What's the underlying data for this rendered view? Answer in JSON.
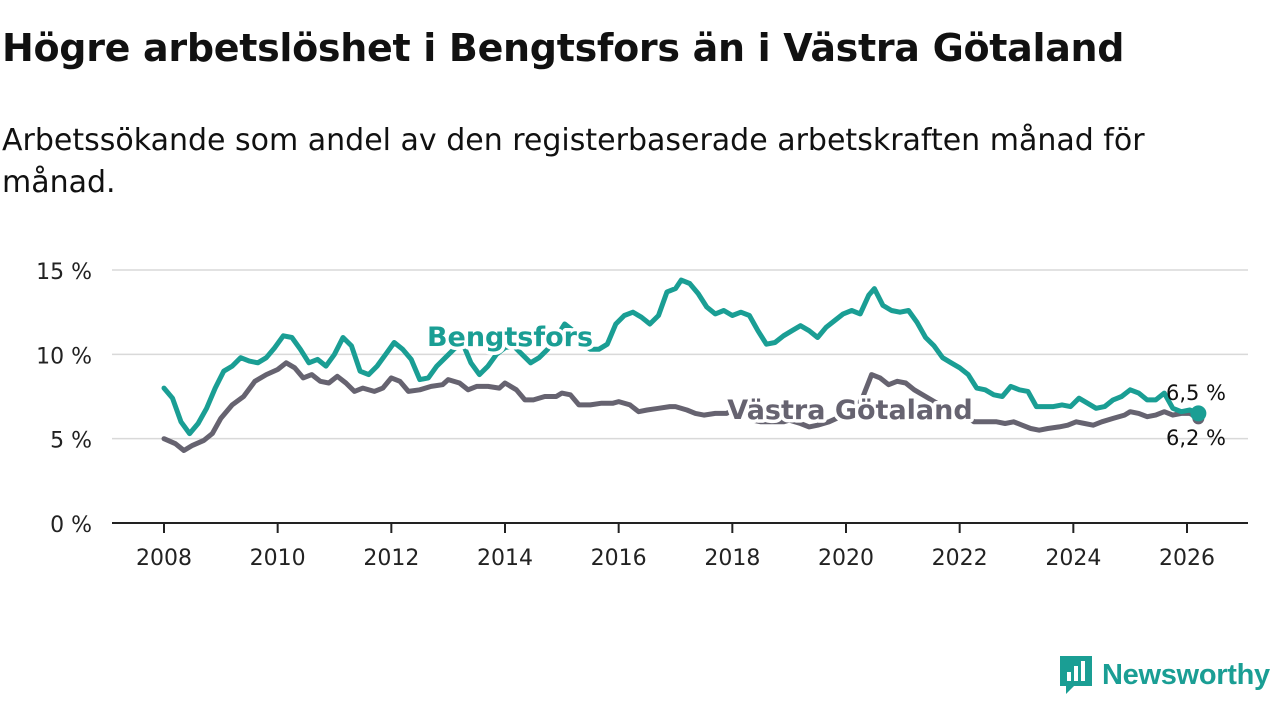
{
  "title": "Högre arbetslöshet i Bengtsfors än i Västra Götaland",
  "subtitle": "Arbetssökande som andel av den registerbaserade arbetskraften månad för månad.",
  "brand": {
    "name": "Newsworthy",
    "color": "#1a9e94",
    "icon": "newsworthy-logo-icon"
  },
  "chart_data": {
    "type": "line",
    "title": "Högre arbetslöshet i Bengtsfors än i Västra Götaland",
    "ylim": [
      0,
      15
    ],
    "xlim": [
      2007.9,
      2027.1
    ],
    "y_ticks": [
      0,
      5,
      10,
      15
    ],
    "y_tick_labels": [
      "0 %",
      "5 %",
      "10 %",
      "15 %"
    ],
    "x_ticks": [
      2008,
      2010,
      2012,
      2014,
      2016,
      2018,
      2020,
      2022,
      2024,
      2026
    ],
    "x_tick_labels": [
      "2008",
      "2010",
      "2012",
      "2014",
      "2016",
      "2018",
      "2020",
      "2022",
      "2024",
      "2026"
    ],
    "grid": true,
    "series": [
      {
        "name": "Västra Götaland",
        "label": "Västra Götaland",
        "color": "#666370",
        "end_label": "6,2 %",
        "points": [
          [
            2008.0,
            5.0
          ],
          [
            2008.2,
            4.7
          ],
          [
            2008.35,
            4.3
          ],
          [
            2008.5,
            4.6
          ],
          [
            2008.7,
            4.9
          ],
          [
            2008.85,
            5.3
          ],
          [
            2009.0,
            6.2
          ],
          [
            2009.2,
            7.0
          ],
          [
            2009.4,
            7.5
          ],
          [
            2009.6,
            8.4
          ],
          [
            2009.8,
            8.8
          ],
          [
            2010.0,
            9.1
          ],
          [
            2010.15,
            9.5
          ],
          [
            2010.3,
            9.2
          ],
          [
            2010.45,
            8.6
          ],
          [
            2010.6,
            8.8
          ],
          [
            2010.75,
            8.4
          ],
          [
            2010.9,
            8.3
          ],
          [
            2011.05,
            8.7
          ],
          [
            2011.2,
            8.3
          ],
          [
            2011.35,
            7.8
          ],
          [
            2011.5,
            8.0
          ],
          [
            2011.7,
            7.8
          ],
          [
            2011.85,
            8.0
          ],
          [
            2012.0,
            8.6
          ],
          [
            2012.15,
            8.4
          ],
          [
            2012.3,
            7.8
          ],
          [
            2012.5,
            7.9
          ],
          [
            2012.7,
            8.1
          ],
          [
            2012.9,
            8.2
          ],
          [
            2013.0,
            8.5
          ],
          [
            2013.2,
            8.3
          ],
          [
            2013.35,
            7.9
          ],
          [
            2013.5,
            8.1
          ],
          [
            2013.7,
            8.1
          ],
          [
            2013.9,
            8.0
          ],
          [
            2014.0,
            8.3
          ],
          [
            2014.2,
            7.9
          ],
          [
            2014.35,
            7.3
          ],
          [
            2014.5,
            7.3
          ],
          [
            2014.7,
            7.5
          ],
          [
            2014.9,
            7.5
          ],
          [
            2015.0,
            7.7
          ],
          [
            2015.15,
            7.6
          ],
          [
            2015.3,
            7.0
          ],
          [
            2015.5,
            7.0
          ],
          [
            2015.7,
            7.1
          ],
          [
            2015.9,
            7.1
          ],
          [
            2016.0,
            7.2
          ],
          [
            2016.2,
            7.0
          ],
          [
            2016.35,
            6.6
          ],
          [
            2016.5,
            6.7
          ],
          [
            2016.7,
            6.8
          ],
          [
            2016.9,
            6.9
          ],
          [
            2017.0,
            6.9
          ],
          [
            2017.2,
            6.7
          ],
          [
            2017.35,
            6.5
          ],
          [
            2017.5,
            6.4
          ],
          [
            2017.7,
            6.5
          ],
          [
            2017.9,
            6.5
          ],
          [
            2018.0,
            6.7
          ],
          [
            2018.2,
            6.5
          ],
          [
            2018.35,
            6.1
          ],
          [
            2018.5,
            6.0
          ],
          [
            2018.7,
            6.0
          ],
          [
            2018.9,
            6.0
          ],
          [
            2019.0,
            6.1
          ],
          [
            2019.2,
            5.9
          ],
          [
            2019.35,
            5.7
          ],
          [
            2019.5,
            5.8
          ],
          [
            2019.7,
            6.0
          ],
          [
            2019.9,
            6.3
          ],
          [
            2020.0,
            6.5
          ],
          [
            2020.15,
            6.6
          ],
          [
            2020.3,
            7.5
          ],
          [
            2020.45,
            8.8
          ],
          [
            2020.6,
            8.6
          ],
          [
            2020.75,
            8.2
          ],
          [
            2020.9,
            8.4
          ],
          [
            2021.05,
            8.3
          ],
          [
            2021.2,
            7.9
          ],
          [
            2021.4,
            7.5
          ],
          [
            2021.6,
            7.1
          ],
          [
            2021.8,
            6.8
          ],
          [
            2021.95,
            6.5
          ],
          [
            2022.1,
            6.4
          ],
          [
            2022.25,
            6.0
          ],
          [
            2022.45,
            6.0
          ],
          [
            2022.65,
            6.0
          ],
          [
            2022.8,
            5.9
          ],
          [
            2022.95,
            6.0
          ],
          [
            2023.1,
            5.8
          ],
          [
            2023.25,
            5.6
          ],
          [
            2023.4,
            5.5
          ],
          [
            2023.55,
            5.6
          ],
          [
            2023.75,
            5.7
          ],
          [
            2023.9,
            5.8
          ],
          [
            2024.05,
            6.0
          ],
          [
            2024.2,
            5.9
          ],
          [
            2024.35,
            5.8
          ],
          [
            2024.5,
            6.0
          ],
          [
            2024.7,
            6.2
          ],
          [
            2024.9,
            6.4
          ],
          [
            2025.0,
            6.6
          ],
          [
            2025.15,
            6.5
          ],
          [
            2025.3,
            6.3
          ],
          [
            2025.45,
            6.4
          ],
          [
            2025.6,
            6.6
          ],
          [
            2025.75,
            6.4
          ],
          [
            2025.9,
            6.5
          ],
          [
            2026.05,
            6.5
          ],
          [
            2026.2,
            6.2
          ]
        ]
      },
      {
        "name": "Bengtsfors",
        "label": "Bengtsfors",
        "color": "#1a9e94",
        "end_label": "6,5 %",
        "points": [
          [
            2008.0,
            8.0
          ],
          [
            2008.15,
            7.4
          ],
          [
            2008.3,
            6.0
          ],
          [
            2008.45,
            5.3
          ],
          [
            2008.6,
            5.9
          ],
          [
            2008.75,
            6.8
          ],
          [
            2008.9,
            8.0
          ],
          [
            2009.05,
            9.0
          ],
          [
            2009.2,
            9.3
          ],
          [
            2009.35,
            9.8
          ],
          [
            2009.5,
            9.6
          ],
          [
            2009.65,
            9.5
          ],
          [
            2009.8,
            9.8
          ],
          [
            2009.95,
            10.4
          ],
          [
            2010.1,
            11.1
          ],
          [
            2010.25,
            11.0
          ],
          [
            2010.4,
            10.3
          ],
          [
            2010.55,
            9.5
          ],
          [
            2010.7,
            9.7
          ],
          [
            2010.85,
            9.3
          ],
          [
            2011.0,
            10.0
          ],
          [
            2011.15,
            11.0
          ],
          [
            2011.3,
            10.5
          ],
          [
            2011.45,
            9.0
          ],
          [
            2011.6,
            8.8
          ],
          [
            2011.75,
            9.3
          ],
          [
            2011.9,
            10.0
          ],
          [
            2012.05,
            10.7
          ],
          [
            2012.2,
            10.3
          ],
          [
            2012.35,
            9.7
          ],
          [
            2012.5,
            8.5
          ],
          [
            2012.65,
            8.6
          ],
          [
            2012.8,
            9.3
          ],
          [
            2012.95,
            9.8
          ],
          [
            2013.1,
            10.3
          ],
          [
            2013.25,
            10.7
          ],
          [
            2013.4,
            9.5
          ],
          [
            2013.55,
            8.8
          ],
          [
            2013.7,
            9.3
          ],
          [
            2013.85,
            10.0
          ],
          [
            2014.0,
            10.4
          ],
          [
            2014.15,
            10.5
          ],
          [
            2014.3,
            10.0
          ],
          [
            2014.45,
            9.5
          ],
          [
            2014.6,
            9.8
          ],
          [
            2014.75,
            10.3
          ],
          [
            2014.9,
            11.0
          ],
          [
            2015.05,
            11.8
          ],
          [
            2015.2,
            11.4
          ],
          [
            2015.35,
            10.7
          ],
          [
            2015.5,
            10.3
          ],
          [
            2015.65,
            10.3
          ],
          [
            2015.8,
            10.6
          ],
          [
            2015.95,
            11.8
          ],
          [
            2016.1,
            12.3
          ],
          [
            2016.25,
            12.5
          ],
          [
            2016.4,
            12.2
          ],
          [
            2016.55,
            11.8
          ],
          [
            2016.7,
            12.3
          ],
          [
            2016.85,
            13.7
          ],
          [
            2017.0,
            13.9
          ],
          [
            2017.1,
            14.4
          ],
          [
            2017.25,
            14.2
          ],
          [
            2017.4,
            13.6
          ],
          [
            2017.55,
            12.8
          ],
          [
            2017.7,
            12.4
          ],
          [
            2017.85,
            12.6
          ],
          [
            2018.0,
            12.3
          ],
          [
            2018.15,
            12.5
          ],
          [
            2018.3,
            12.3
          ],
          [
            2018.45,
            11.4
          ],
          [
            2018.6,
            10.6
          ],
          [
            2018.75,
            10.7
          ],
          [
            2018.9,
            11.1
          ],
          [
            2019.05,
            11.4
          ],
          [
            2019.2,
            11.7
          ],
          [
            2019.35,
            11.4
          ],
          [
            2019.5,
            11.0
          ],
          [
            2019.65,
            11.6
          ],
          [
            2019.8,
            12.0
          ],
          [
            2019.95,
            12.4
          ],
          [
            2020.1,
            12.6
          ],
          [
            2020.25,
            12.4
          ],
          [
            2020.4,
            13.5
          ],
          [
            2020.5,
            13.9
          ],
          [
            2020.65,
            12.9
          ],
          [
            2020.8,
            12.6
          ],
          [
            2020.95,
            12.5
          ],
          [
            2021.1,
            12.6
          ],
          [
            2021.25,
            11.9
          ],
          [
            2021.4,
            11.0
          ],
          [
            2021.55,
            10.5
          ],
          [
            2021.7,
            9.8
          ],
          [
            2021.85,
            9.5
          ],
          [
            2022.0,
            9.2
          ],
          [
            2022.15,
            8.8
          ],
          [
            2022.3,
            8.0
          ],
          [
            2022.45,
            7.9
          ],
          [
            2022.6,
            7.6
          ],
          [
            2022.75,
            7.5
          ],
          [
            2022.9,
            8.1
          ],
          [
            2023.05,
            7.9
          ],
          [
            2023.2,
            7.8
          ],
          [
            2023.35,
            6.9
          ],
          [
            2023.5,
            6.9
          ],
          [
            2023.65,
            6.9
          ],
          [
            2023.8,
            7.0
          ],
          [
            2023.95,
            6.9
          ],
          [
            2024.1,
            7.4
          ],
          [
            2024.25,
            7.1
          ],
          [
            2024.4,
            6.8
          ],
          [
            2024.55,
            6.9
          ],
          [
            2024.7,
            7.3
          ],
          [
            2024.85,
            7.5
          ],
          [
            2025.0,
            7.9
          ],
          [
            2025.15,
            7.7
          ],
          [
            2025.3,
            7.3
          ],
          [
            2025.45,
            7.3
          ],
          [
            2025.6,
            7.7
          ],
          [
            2025.75,
            6.8
          ],
          [
            2025.9,
            6.6
          ],
          [
            2026.05,
            6.7
          ],
          [
            2026.2,
            6.5
          ]
        ]
      }
    ]
  }
}
